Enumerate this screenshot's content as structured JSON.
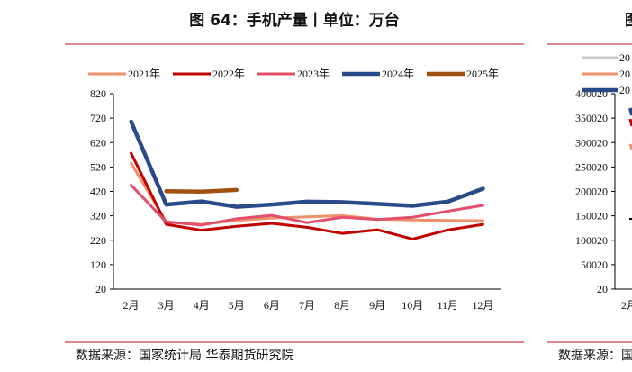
{
  "title": "图 64：手机产量丨单位：万台",
  "source": "数据来源：国家统计局 华泰期货研究院",
  "chart_data": {
    "type": "line",
    "title": "图 64：手机产量丨单位：万台",
    "xlabel": "",
    "ylabel": "万台",
    "categories": [
      "2月",
      "3月",
      "4月",
      "5月",
      "6月",
      "7月",
      "8月",
      "9月",
      "10月",
      "11月",
      "12月"
    ],
    "ylim": [
      20,
      820
    ],
    "yticks": [
      20,
      120,
      220,
      320,
      420,
      520,
      620,
      720,
      820
    ],
    "legend_position": "top",
    "series": [
      {
        "name": "2021年",
        "color": "#f0906a",
        "width": 3,
        "values": [
          536,
          295,
          285,
          301,
          311,
          316,
          321,
          306,
          303,
          301,
          300
        ]
      },
      {
        "name": "2022年",
        "color": "#c00000",
        "width": 3,
        "values": [
          577,
          285,
          261,
          277,
          289,
          273,
          248,
          263,
          225,
          262,
          285
        ]
      },
      {
        "name": "2023年",
        "color": "#e0506a",
        "width": 3,
        "values": [
          446,
          295,
          282,
          308,
          322,
          292,
          314,
          305,
          314,
          339,
          363
        ]
      },
      {
        "name": "2024年",
        "color": "#2a4a8a",
        "width": 4.5,
        "values": [
          706,
          366,
          379,
          357,
          366,
          378,
          376,
          369,
          361,
          378,
          431
        ]
      },
      {
        "name": "2025年",
        "color": "#a0500f",
        "width": 4.5,
        "values": [
          null,
          421,
          419,
          426,
          null,
          null,
          null,
          null,
          null,
          null,
          null
        ]
      }
    ]
  },
  "right_panel": {
    "title_fragment": "图",
    "legend_fragments": [
      "20",
      "20",
      "20"
    ],
    "legend_colors": [
      "#c8c8c8",
      "#f0906a",
      "#2a4a8a"
    ],
    "yticks": [
      "400020",
      "350020",
      "300020",
      "250020",
      "200020",
      "150020",
      "100020",
      "50020",
      "20"
    ],
    "xtick": "2月",
    "source_fragment": "数据来源：国"
  }
}
